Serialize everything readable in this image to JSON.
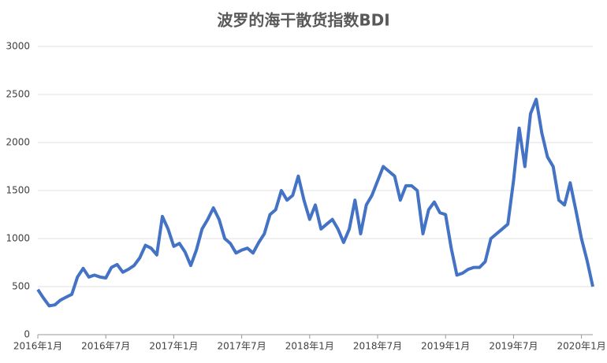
{
  "chart_data": {
    "type": "line",
    "title": "波罗的海干散货指数BDI",
    "categories": [
      "2016年1月",
      null,
      null,
      null,
      null,
      null,
      null,
      null,
      null,
      null,
      null,
      null,
      "2016年7月",
      null,
      null,
      null,
      null,
      null,
      null,
      null,
      null,
      null,
      null,
      null,
      "2017年1月",
      null,
      null,
      null,
      null,
      null,
      null,
      null,
      null,
      null,
      null,
      null,
      "2017年7月",
      null,
      null,
      null,
      null,
      null,
      null,
      null,
      null,
      null,
      null,
      null,
      "2018年1月",
      null,
      null,
      null,
      null,
      null,
      null,
      null,
      null,
      null,
      null,
      null,
      "2018年7月",
      null,
      null,
      null,
      null,
      null,
      null,
      null,
      null,
      null,
      null,
      null,
      "2019年1月",
      null,
      null,
      null,
      null,
      null,
      null,
      null,
      null,
      null,
      null,
      null,
      "2019年7月",
      null,
      null,
      null,
      null,
      null,
      null,
      null,
      null,
      null,
      null,
      null,
      "2020年1月",
      null,
      null
    ],
    "series": [
      {
        "name": "BDI",
        "color": "#4472c4",
        "values": [
          470,
          380,
          300,
          310,
          360,
          390,
          420,
          600,
          690,
          600,
          620,
          600,
          590,
          700,
          730,
          650,
          680,
          720,
          800,
          930,
          900,
          830,
          1230,
          1100,
          920,
          950,
          860,
          720,
          880,
          1100,
          1200,
          1320,
          1200,
          1000,
          950,
          850,
          880,
          900,
          850,
          960,
          1050,
          1250,
          1300,
          1500,
          1400,
          1450,
          1650,
          1400,
          1200,
          1350,
          1100,
          1150,
          1200,
          1100,
          960,
          1100,
          1400,
          1050,
          1350,
          1450,
          1600,
          1750,
          1700,
          1650,
          1400,
          1550,
          1550,
          1500,
          1050,
          1300,
          1380,
          1270,
          1250,
          900,
          620,
          640,
          680,
          700,
          700,
          760,
          1000,
          1050,
          1100,
          1150,
          1600,
          2150,
          1750,
          2300,
          2450,
          2100,
          1850,
          1750,
          1400,
          1350,
          1580,
          1300,
          1000,
          770,
          500
        ]
      }
    ],
    "ylim": [
      0,
      3000
    ],
    "yticks": [
      0,
      500,
      1000,
      1500,
      2000,
      2500,
      3000
    ],
    "grid": true
  }
}
